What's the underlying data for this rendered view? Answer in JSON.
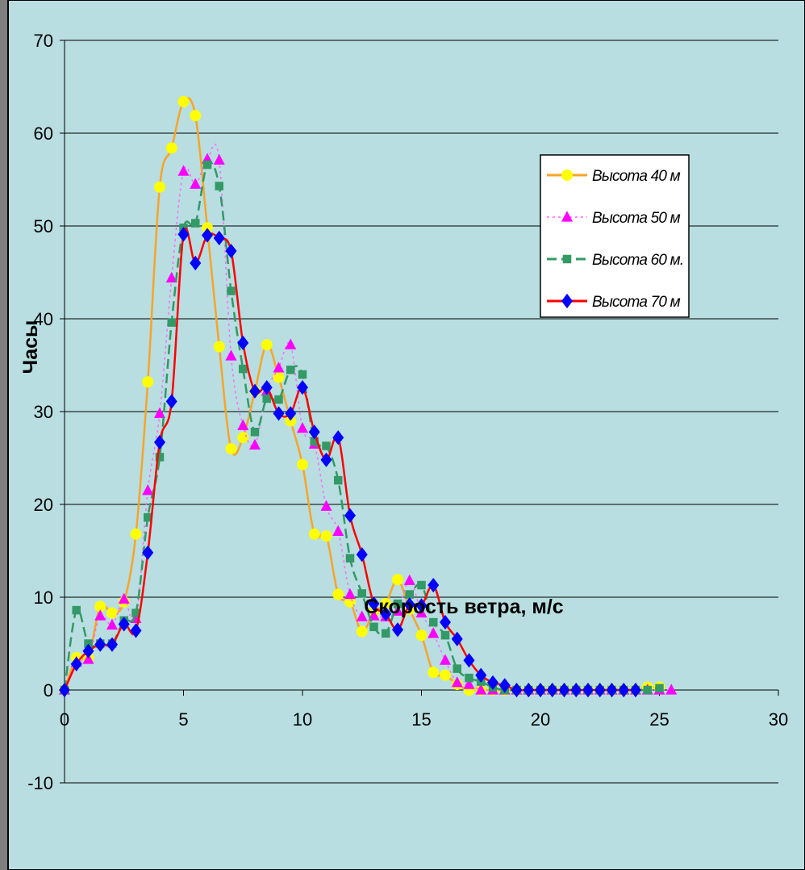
{
  "colors": {
    "plot_background": "#b8dee1",
    "frame_shadow": "#7f7f7f",
    "border": "#000000",
    "gridline": "#000000"
  },
  "chart_data": {
    "type": "line",
    "title": "",
    "xlabel": "Скорость ветра, м/с",
    "ylabel": "Часы",
    "xlim": [
      0,
      30
    ],
    "ylim": [
      -10,
      70
    ],
    "xticks": [
      0,
      5,
      10,
      15,
      20,
      25,
      30
    ],
    "yticks": [
      -10,
      0,
      10,
      20,
      30,
      40,
      50,
      60,
      70
    ],
    "grid": "horizontal",
    "legend_position": "right",
    "x": [
      0,
      0.5,
      1,
      1.5,
      2,
      2.5,
      3,
      3.5,
      4,
      4.5,
      5,
      5.5,
      6,
      6.5,
      7,
      7.5,
      8,
      8.5,
      9,
      9.5,
      10,
      10.5,
      11,
      11.5,
      12,
      12.5,
      13,
      13.5,
      14,
      14.5,
      15,
      15.5,
      16,
      16.5,
      17,
      17.5,
      18,
      18.5,
      19,
      19.5,
      20,
      20.5,
      21,
      21.5,
      22,
      22.5,
      23,
      23.5,
      24,
      24.5,
      25,
      25.5
    ],
    "series": [
      {
        "name": "Высота 40 м",
        "color": "#f7a428",
        "marker": "circle",
        "marker_color": "#ffff00",
        "line_style": "solid",
        "values": [
          0,
          3.5,
          3.5,
          9,
          8.3,
          9.5,
          16.8,
          33.2,
          54.2,
          58.4,
          63.4,
          61.9,
          49.8,
          37,
          26,
          27.2,
          32.2,
          37.2,
          33.7,
          29,
          24.3,
          16.8,
          16.6,
          10.3,
          9.5,
          6.3,
          8.4,
          9.3,
          11.9,
          8.7,
          5.9,
          1.9,
          1.6,
          0.6,
          0,
          0,
          0,
          0,
          0,
          0,
          0,
          0,
          0,
          0,
          0,
          0,
          0,
          0,
          0,
          0.3,
          0.3,
          null
        ]
      },
      {
        "name": "Высота 50 м",
        "color": "#ff66ff",
        "marker": "triangle",
        "marker_color": "#ff00ff",
        "line_style": "dotted",
        "values": [
          0,
          3,
          3.3,
          8,
          7,
          9.8,
          7.7,
          21.5,
          29.8,
          44.4,
          55.9,
          54.5,
          57.2,
          57.1,
          36,
          28.5,
          26.4,
          32.2,
          34.7,
          37.2,
          28.2,
          26.5,
          19.8,
          17.1,
          10.3,
          7.9,
          8,
          7.9,
          8.5,
          11.8,
          8.3,
          6.1,
          3.2,
          0.8,
          0.6,
          0,
          0,
          0,
          0,
          0,
          0,
          0,
          0,
          0,
          0,
          0,
          0,
          0,
          0,
          0,
          0,
          0
        ]
      },
      {
        "name": "Высота 60 м.",
        "color": "#339966",
        "marker": "square",
        "marker_color": "#339966",
        "line_style": "dashed",
        "values": [
          0,
          8.6,
          5,
          5,
          5,
          7.5,
          8.3,
          18.6,
          25.1,
          39.6,
          49.8,
          50.3,
          56.6,
          54.3,
          43,
          34.6,
          27.8,
          31.4,
          31.3,
          34.5,
          34,
          26.8,
          26.3,
          22.6,
          14.2,
          10.4,
          6.8,
          6.1,
          9.3,
          10.3,
          11.3,
          7.3,
          5.9,
          2.3,
          1.3,
          0.9,
          0.3,
          0,
          0,
          0,
          0,
          0,
          0,
          0,
          0,
          0,
          0,
          0,
          0,
          0,
          0.2,
          null
        ]
      },
      {
        "name": "Высота 70 м",
        "color": "#ff0000",
        "marker": "diamond",
        "marker_color": "#0000ff",
        "line_style": "solid",
        "values": [
          0,
          2.8,
          4.2,
          4.9,
          4.9,
          7.1,
          6.4,
          14.8,
          26.7,
          31.1,
          49.1,
          46,
          49,
          48.7,
          47.3,
          37.4,
          32.2,
          32.6,
          29.8,
          29.8,
          32.6,
          27.8,
          24.8,
          27.2,
          18.8,
          14.6,
          9.3,
          8.2,
          6.5,
          9.2,
          9.1,
          11.3,
          7.3,
          5.5,
          3.2,
          1.6,
          0.8,
          0.5,
          0,
          0,
          0,
          0,
          0,
          0,
          0,
          0,
          0,
          0,
          0,
          null,
          null,
          null
        ]
      }
    ]
  }
}
